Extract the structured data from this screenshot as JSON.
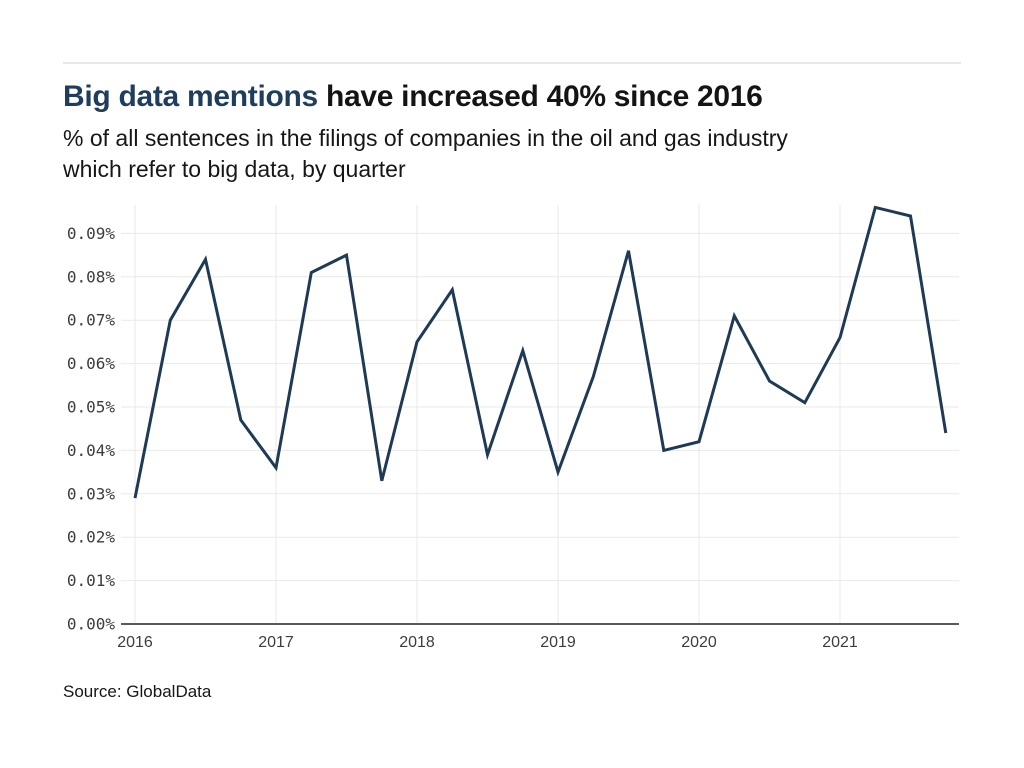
{
  "header": {
    "title_highlight": "Big data mentions",
    "title_rest": " have increased 40% since 2016",
    "subtitle_line1": "% of all sentences in the filings of companies in the oil and gas industry",
    "subtitle_line2": "which refer to big data, by quarter"
  },
  "footer": {
    "source": "Source: GlobalData"
  },
  "style": {
    "background": "#ffffff",
    "accent_navy": "#1f3d5c",
    "line_color": "#1f3a54",
    "grid_color": "#e9e9e9",
    "axis_color": "#58595b",
    "tick_color": "#3d3d3d",
    "rule_color": "#e7e7e7"
  },
  "chart_data": {
    "type": "line",
    "title": "Big data mentions have increased 40% since 2016",
    "subtitle": "% of all sentences in the filings of companies in the oil and gas industry which refer to big data, by quarter",
    "unit": "%",
    "x": [
      "2016 Q1",
      "2016 Q2",
      "2016 Q3",
      "2016 Q4",
      "2017 Q1",
      "2017 Q2",
      "2017 Q3",
      "2017 Q4",
      "2018 Q1",
      "2018 Q2",
      "2018 Q3",
      "2018 Q4",
      "2019 Q1",
      "2019 Q2",
      "2019 Q3",
      "2019 Q4",
      "2020 Q1",
      "2020 Q2",
      "2020 Q3",
      "2020 Q4",
      "2021 Q1",
      "2021 Q2",
      "2021 Q3",
      "2021 Q4"
    ],
    "series": [
      {
        "name": "Big data mentions (% of all sentences)",
        "values": [
          0.029,
          0.07,
          0.084,
          0.047,
          0.036,
          0.081,
          0.085,
          0.033,
          0.065,
          0.077,
          0.039,
          0.063,
          0.035,
          0.057,
          0.086,
          0.04,
          0.042,
          0.071,
          0.056,
          0.051,
          0.066,
          0.096,
          0.094,
          0.044
        ]
      }
    ],
    "x_tick_labels": [
      "2016",
      "2017",
      "2018",
      "2019",
      "2020",
      "2021"
    ],
    "y_tick_labels": [
      "0.00%",
      "0.01%",
      "0.02%",
      "0.03%",
      "0.04%",
      "0.05%",
      "0.06%",
      "0.07%",
      "0.08%",
      "0.09%"
    ],
    "ylim": [
      0,
      0.0965
    ],
    "grid": true,
    "legend": "none",
    "source": "Source: GlobalData"
  }
}
